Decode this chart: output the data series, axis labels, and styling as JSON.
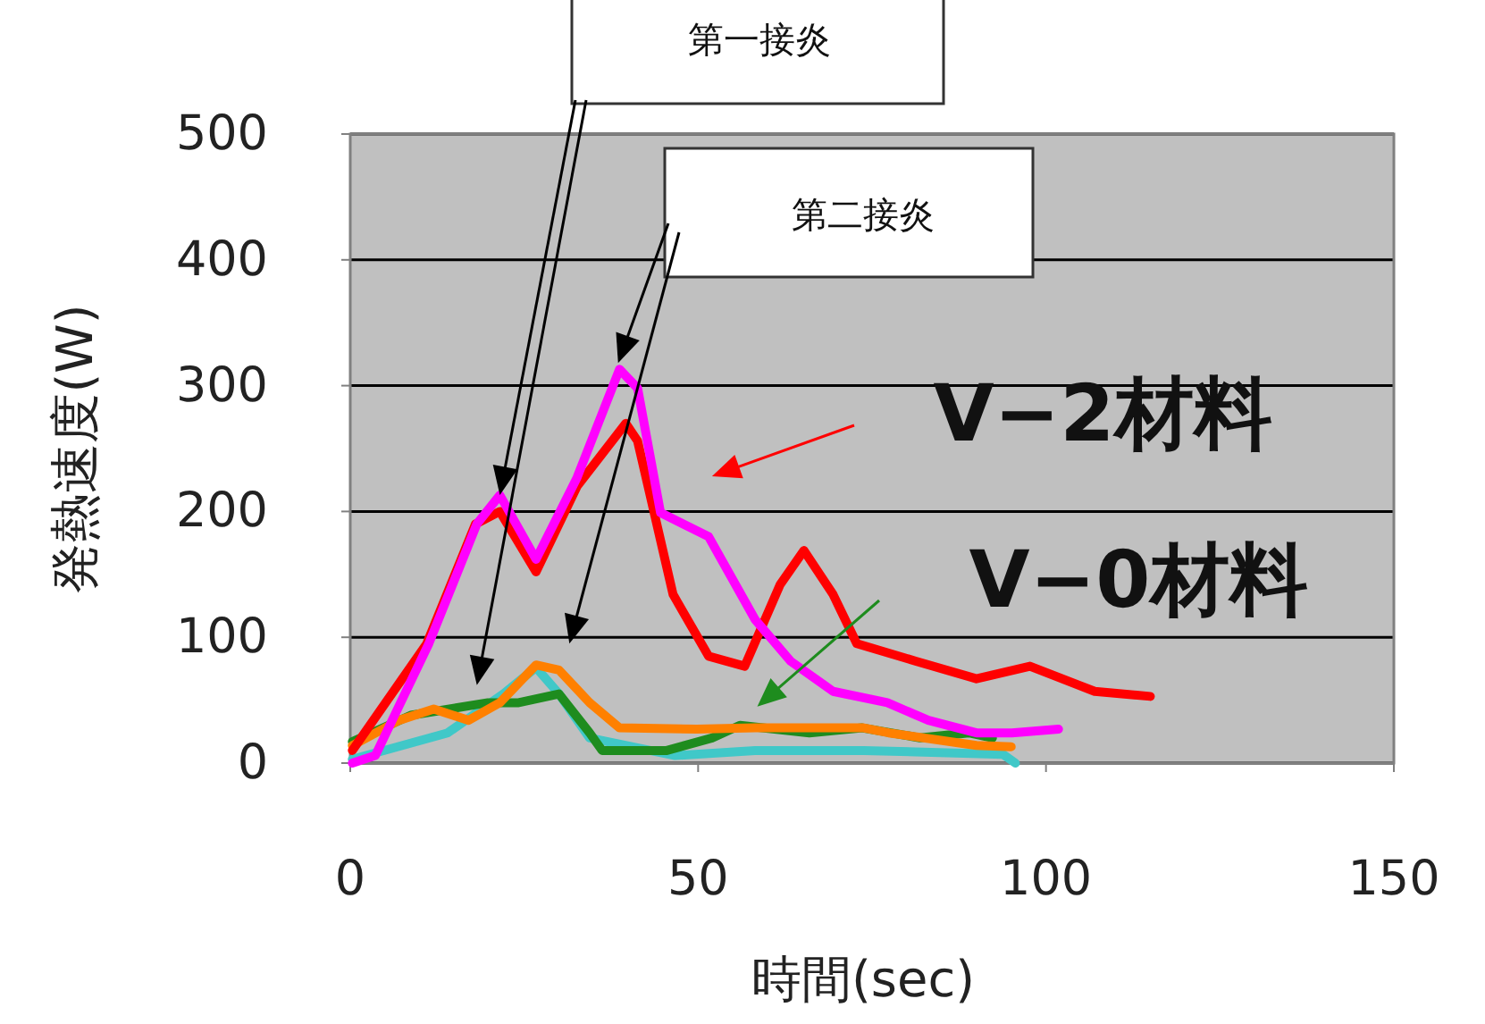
{
  "chart_data": {
    "type": "line",
    "xlabel": "時間(sec)",
    "ylabel": "発熱速度(W)",
    "xlim": [
      0,
      150
    ],
    "ylim": [
      0,
      500
    ],
    "xticks": [
      0,
      50,
      100,
      150
    ],
    "yticks": [
      0,
      100,
      200,
      300,
      400,
      500
    ],
    "grid": "y",
    "marker": "none",
    "line_style": "solid",
    "annotations": [
      "第一接炎",
      "第二接炎",
      "V−2材料",
      "V−0材料"
    ],
    "series": [
      {
        "color": "#40c8c8",
        "x": [
          0.3,
          14,
          22,
          26.7,
          30,
          34.4,
          46.7,
          58.2,
          73.8,
          93.8,
          95.6
        ],
        "values": [
          3,
          24,
          55,
          76,
          55,
          20,
          6,
          10,
          10,
          7,
          0
        ]
      },
      {
        "color": "#1e8c1e",
        "x": [
          0.3,
          8.7,
          19.8,
          24.2,
          30,
          34.4,
          36.2,
          45.5,
          52,
          56,
          66,
          73.6,
          81.9,
          88.9,
          92.3
        ],
        "values": [
          17,
          38,
          48,
          48,
          55,
          24,
          10,
          10,
          20,
          30,
          24,
          28,
          20,
          24,
          20
        ]
      },
      {
        "color": "#ff8000",
        "x": [
          0.3,
          7,
          12,
          17,
          21.5,
          26.7,
          30,
          34.4,
          38.7,
          49.8,
          58.2,
          73.8,
          77.4,
          90,
          95
        ],
        "values": [
          14,
          34,
          43,
          34,
          48,
          78,
          74,
          48,
          28,
          27,
          28,
          28,
          24,
          14,
          13
        ]
      },
      {
        "color": "#ff0000",
        "x": [
          0.3,
          11,
          18,
          21.5,
          26.7,
          32.6,
          39.6,
          41.3,
          46.4,
          51.5,
          56.7,
          61.8,
          65.2,
          69.4,
          72.8,
          81.3,
          90,
          97.7,
          107,
          115
        ],
        "values": [
          10,
          95,
          190,
          200,
          152,
          220,
          270,
          256,
          134,
          85,
          77,
          142,
          169,
          134,
          95,
          81,
          67,
          77,
          57,
          53
        ]
      },
      {
        "color": "#ff00ff",
        "x": [
          0.3,
          3.6,
          11.3,
          18.2,
          21.5,
          26.7,
          32.6,
          38.7,
          41.3,
          44.6,
          51.5,
          58.2,
          63.3,
          69.4,
          77.2,
          83.1,
          90,
          95.1,
          101.8
        ],
        "values": [
          0,
          6,
          95,
          190,
          213,
          162,
          227,
          313,
          298,
          199,
          180,
          114,
          81,
          57,
          48,
          34,
          24,
          24,
          27
        ]
      }
    ]
  }
}
